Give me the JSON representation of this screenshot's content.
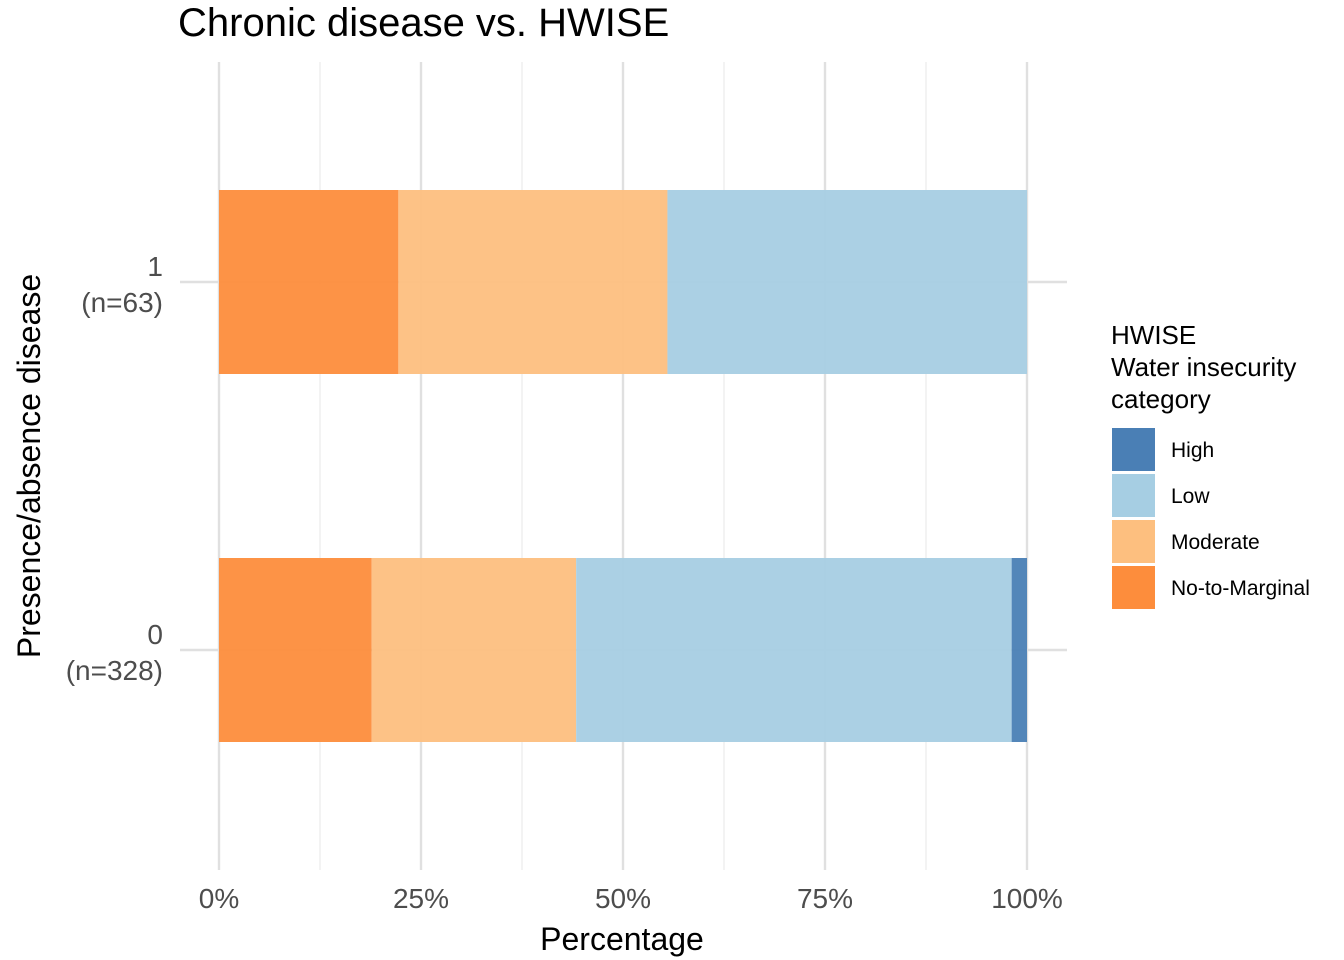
{
  "chart_data": {
    "type": "bar",
    "orientation": "horizontal",
    "stacked": true,
    "title": "Chronic disease vs. HWISE",
    "xlabel": "Percentage",
    "ylabel": "Presence/absence disease",
    "xlim": [
      0,
      100
    ],
    "x_ticks": [
      "0%",
      "25%",
      "50%",
      "75%",
      "100%"
    ],
    "categories": [
      {
        "label": "1",
        "n_label": "(n=63)"
      },
      {
        "label": "0",
        "n_label": "(n=328)"
      }
    ],
    "series": [
      {
        "name": "No-to-Marginal",
        "color": "#fd8d3c",
        "values": [
          22.2,
          18.9
        ]
      },
      {
        "name": "Moderate",
        "color": "#fdbf7f",
        "values": [
          33.3,
          25.3
        ]
      },
      {
        "name": "Low",
        "color": "#a6cee3",
        "values": [
          44.5,
          53.9
        ]
      },
      {
        "name": "High",
        "color": "#4a7fb5",
        "values": [
          0,
          1.9
        ]
      }
    ],
    "legend": {
      "title_lines": [
        "HWISE",
        "Water insecurity",
        "category"
      ],
      "order": [
        "High",
        "Low",
        "Moderate",
        "No-to-Marginal"
      ],
      "placement": "right"
    },
    "grid": true
  }
}
